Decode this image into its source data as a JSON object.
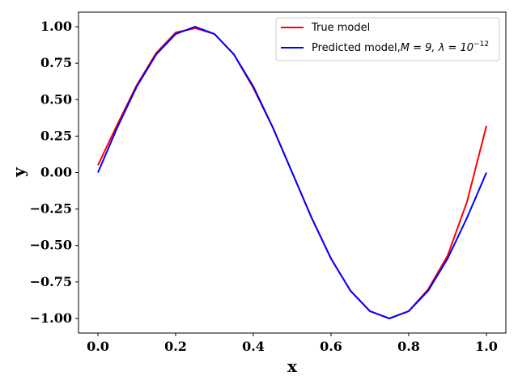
{
  "chart_data": {
    "type": "line",
    "xlabel": "x",
    "ylabel": "y",
    "xlim": [
      -0.05,
      1.05
    ],
    "ylim": [
      -1.1,
      1.1
    ],
    "xticks": [
      "0.0",
      "0.2",
      "0.4",
      "0.6",
      "0.8",
      "1.0"
    ],
    "yticks": [
      "−1.00",
      "−0.75",
      "−0.50",
      "−0.25",
      "0.00",
      "0.25",
      "0.50",
      "0.75",
      "1.00"
    ],
    "grid": false,
    "legend_position": "upper-right",
    "series": [
      {
        "name": "True model",
        "color": "#ff0000",
        "x": [
          0.0,
          0.05,
          0.1,
          0.15,
          0.2,
          0.25,
          0.3,
          0.35,
          0.4,
          0.45,
          0.5,
          0.55,
          0.6,
          0.65,
          0.7,
          0.75,
          0.8,
          0.85,
          0.9,
          0.95,
          1.0
        ],
        "y": [
          0.05,
          0.33,
          0.6,
          0.82,
          0.96,
          0.99,
          0.95,
          0.81,
          0.58,
          0.31,
          0.0,
          -0.31,
          -0.59,
          -0.81,
          -0.95,
          -1.0,
          -0.95,
          -0.8,
          -0.57,
          -0.2,
          0.32
        ]
      },
      {
        "name": "Predicted model,",
        "name_math": "M = 9, λ = 10",
        "name_exponent": "−12",
        "color": "#0000ff",
        "x": [
          0.0,
          0.05,
          0.1,
          0.15,
          0.2,
          0.25,
          0.3,
          0.35,
          0.4,
          0.45,
          0.5,
          0.55,
          0.6,
          0.65,
          0.7,
          0.75,
          0.8,
          0.85,
          0.9,
          0.95,
          1.0
        ],
        "y": [
          0.0,
          0.31,
          0.59,
          0.81,
          0.95,
          1.0,
          0.95,
          0.81,
          0.59,
          0.31,
          0.0,
          -0.31,
          -0.59,
          -0.81,
          -0.95,
          -1.0,
          -0.95,
          -0.81,
          -0.59,
          -0.31,
          0.0
        ]
      }
    ]
  }
}
